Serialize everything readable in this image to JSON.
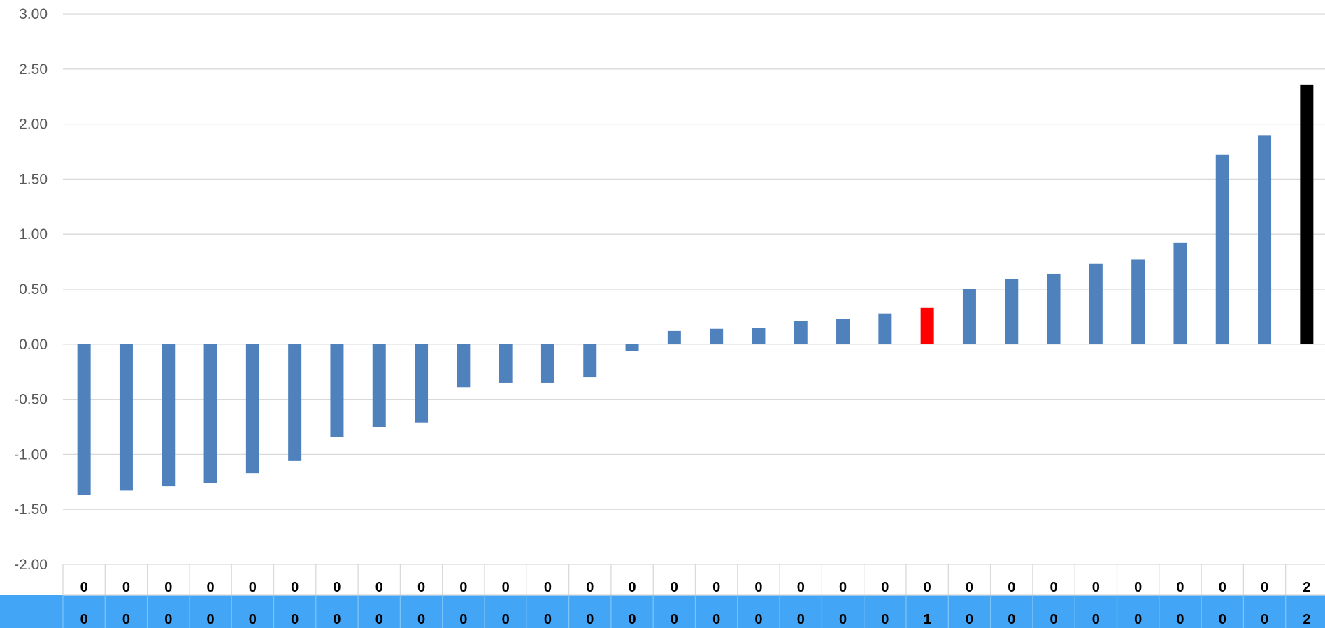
{
  "chart_data": {
    "type": "bar",
    "title": "",
    "xlabel": "",
    "ylabel": "",
    "ylim": [
      -2.0,
      3.0
    ],
    "yticks": [
      "3.00",
      "2.50",
      "2.00",
      "1.50",
      "1.00",
      "0.50",
      "0.00",
      "-0.50",
      "-1.00",
      "-1.50",
      "-2.00"
    ],
    "ytick_values": [
      3.0,
      2.5,
      2.0,
      1.5,
      1.0,
      0.5,
      0.0,
      -0.5,
      -1.0,
      -1.5,
      -2.0
    ],
    "grid": true,
    "legend": "none",
    "values": [
      -1.37,
      -1.33,
      -1.29,
      -1.26,
      -1.17,
      -1.06,
      -0.84,
      -0.75,
      -0.71,
      -0.39,
      -0.35,
      -0.35,
      -0.3,
      -0.06,
      0.12,
      0.14,
      0.15,
      0.21,
      0.23,
      0.28,
      0.33,
      0.5,
      0.59,
      0.64,
      0.73,
      0.77,
      0.92,
      1.72,
      1.9,
      2.36
    ],
    "bar_colors": [
      "#4F81BD",
      "#4F81BD",
      "#4F81BD",
      "#4F81BD",
      "#4F81BD",
      "#4F81BD",
      "#4F81BD",
      "#4F81BD",
      "#4F81BD",
      "#4F81BD",
      "#4F81BD",
      "#4F81BD",
      "#4F81BD",
      "#4F81BD",
      "#4F81BD",
      "#4F81BD",
      "#4F81BD",
      "#4F81BD",
      "#4F81BD",
      "#4F81BD",
      "#FF0000",
      "#4F81BD",
      "#4F81BD",
      "#4F81BD",
      "#4F81BD",
      "#4F81BD",
      "#4F81BD",
      "#4F81BD",
      "#4F81BD",
      "#000000"
    ],
    "table_rows": [
      [
        "0",
        "0",
        "0",
        "0",
        "0",
        "0",
        "0",
        "0",
        "0",
        "0",
        "0",
        "0",
        "0",
        "0",
        "0",
        "0",
        "0",
        "0",
        "0",
        "0",
        "0",
        "0",
        "0",
        "0",
        "0",
        "0",
        "0",
        "0",
        "0",
        "2"
      ],
      [
        "0",
        "0",
        "0",
        "0",
        "0",
        "0",
        "0",
        "0",
        "0",
        "0",
        "0",
        "0",
        "0",
        "0",
        "0",
        "0",
        "0",
        "0",
        "0",
        "0",
        "1",
        "0",
        "0",
        "0",
        "0",
        "0",
        "0",
        "0",
        "0",
        "2"
      ]
    ]
  },
  "colors": {
    "bar": "#4F81BD",
    "highlight": "#FF0000",
    "last": "#000000",
    "grid": "#D9D9D9",
    "table_band": "#42A5F5",
    "tick_text": "#595959"
  }
}
